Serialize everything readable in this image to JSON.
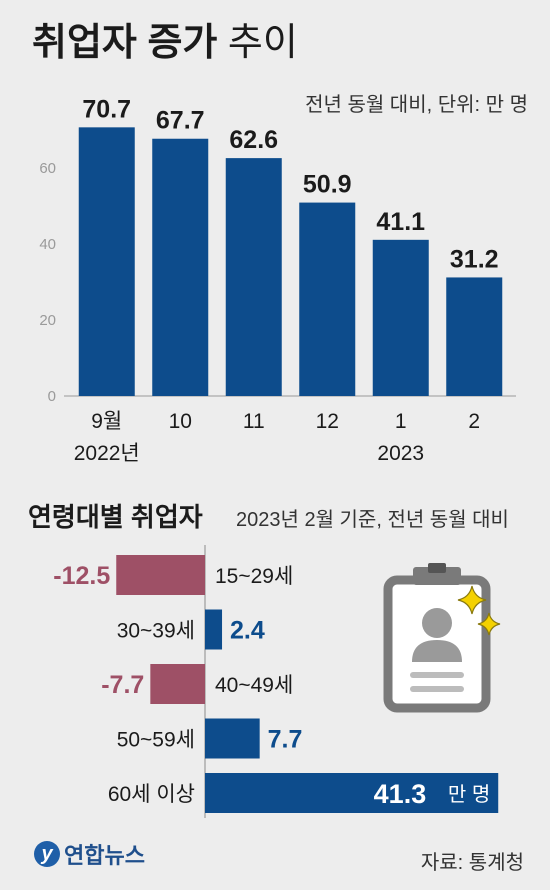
{
  "header": {
    "title_bold": "취업자 증가",
    "title_light": "추이",
    "unit": "전년 동월 대비, 단위: 만 명"
  },
  "section2": {
    "title": "연령대별 취업자",
    "subtitle": "2023년 2월 기준, 전년 동월 대비"
  },
  "footer": {
    "logo_text": "연합뉴스",
    "source": "자료: 통계청"
  },
  "colors": {
    "blue": "#0d4c8c",
    "rose": "#9e5066",
    "badge_gray": "#7a7a7a"
  },
  "icons": [
    "id-badge-icon",
    "sparkle-icon",
    "yonhap-logo-icon"
  ],
  "chart_data": [
    {
      "type": "bar",
      "categories": [
        "9월",
        "10",
        "11",
        "12",
        "1",
        "2"
      ],
      "year_labels": [
        {
          "category": "9월",
          "text": "2022년"
        },
        {
          "category": "1",
          "text": "2023"
        }
      ],
      "values": [
        70.7,
        67.7,
        62.6,
        50.9,
        41.1,
        31.2
      ],
      "data_labels": [
        "70.7",
        "67.7",
        "62.6",
        "50.9",
        "41.1",
        "31.2"
      ],
      "yticks": [
        0,
        20,
        40,
        60
      ],
      "ylim": [
        0,
        80
      ],
      "grid": false,
      "color": "#0d4c8c"
    },
    {
      "type": "bar",
      "orientation": "horizontal",
      "categories": [
        "15~29세",
        "30~39세",
        "40~49세",
        "50~59세",
        "60세 이상"
      ],
      "values": [
        -12.5,
        2.4,
        -7.7,
        7.7,
        41.3
      ],
      "data_labels": [
        "-12.5",
        "2.4",
        "-7.7",
        "7.7",
        "41.3"
      ],
      "last_label_unit": "만 명",
      "positive_color": "#0d4c8c",
      "negative_color": "#9e5066"
    }
  ]
}
